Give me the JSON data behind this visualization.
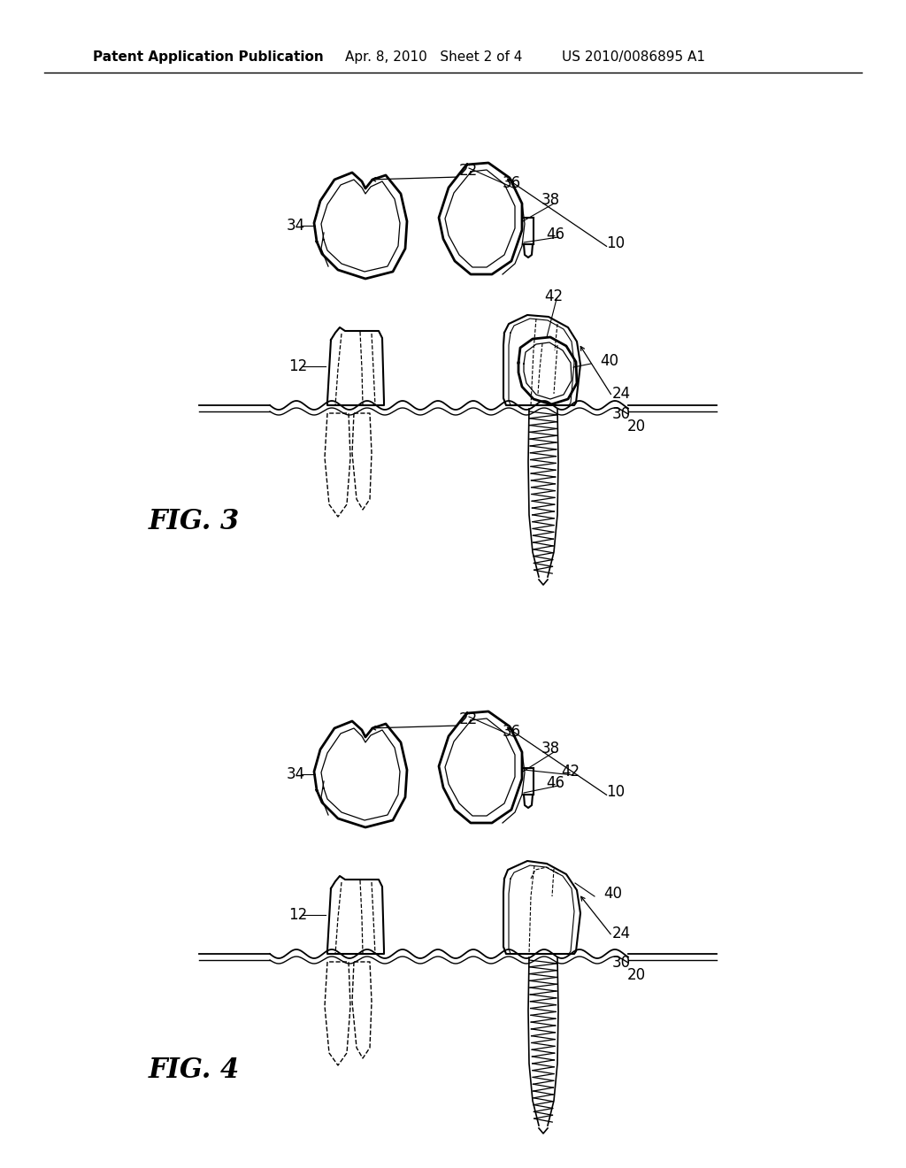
{
  "bg_color": "#ffffff",
  "header_left": "Patent Application Publication",
  "header_mid": "Apr. 8, 2010   Sheet 2 of 4",
  "header_right": "US 2010/0086895 A1",
  "fig3_label": "FIG. 3",
  "fig4_label": "FIG. 4",
  "fig3_oy": 100,
  "fig4_oy": 720,
  "lw_thick": 2.0,
  "lw_main": 1.5,
  "lw_thin": 0.9,
  "label_fs": 12,
  "fig_label_fs": 22
}
